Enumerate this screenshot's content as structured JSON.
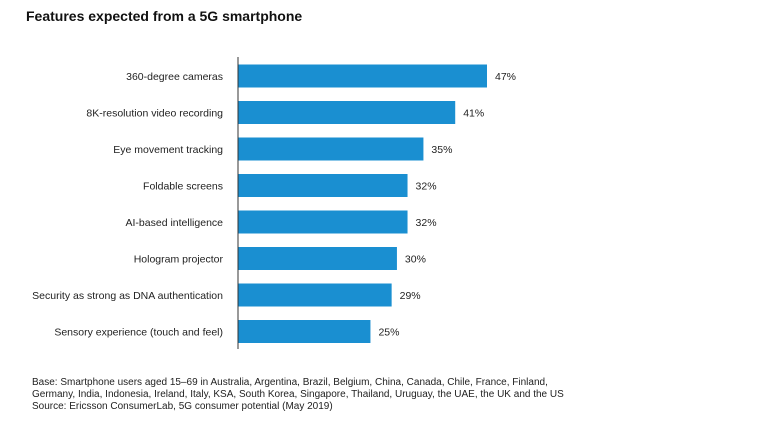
{
  "chart_data": {
    "type": "bar",
    "orientation": "horizontal",
    "title": "Features expected from a 5G smartphone",
    "categories": [
      "360-degree cameras",
      "8K-resolution video recording",
      "Eye movement tracking",
      "Foldable screens",
      "AI-based intelligence",
      "Hologram projector",
      "Security as strong as DNA authentication",
      "Sensory experience (touch and feel)"
    ],
    "values": [
      47,
      41,
      35,
      32,
      32,
      30,
      29,
      25
    ],
    "value_labels": [
      "47%",
      "41%",
      "35%",
      "32%",
      "32%",
      "30%",
      "29%",
      "25%"
    ],
    "xlim": [
      0,
      47
    ],
    "bar_color": "#1a8fd1",
    "axis_color": "#333333",
    "grid": false,
    "legend": "none"
  },
  "footnote": {
    "line1": "Base: Smartphone users aged 15–69 in Australia, Argentina, Brazil, Belgium, China, Canada, Chile, France, Finland,",
    "line2": "Germany, India, Indonesia, Ireland, Italy, KSA, South Korea, Singapore, Thailand, Uruguay, the UAE, the UK and the US",
    "line3": "Source: Ericsson ConsumerLab, 5G consumer potential (May 2019)"
  }
}
